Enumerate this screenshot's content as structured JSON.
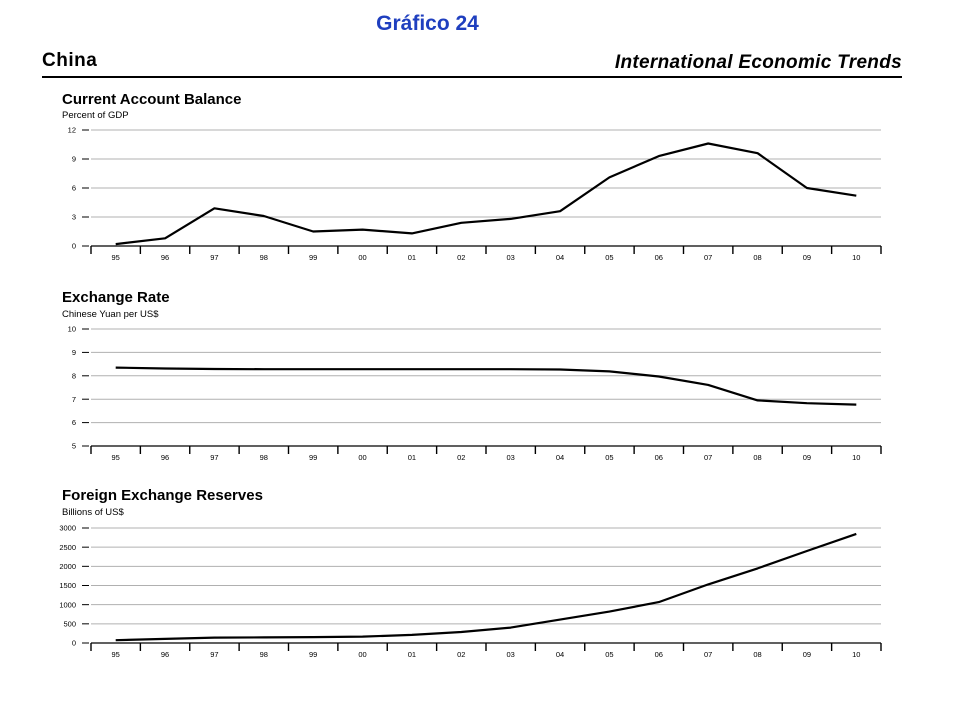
{
  "header": {
    "title": "Gráfico 24",
    "country": "China",
    "publication": "International Economic Trends"
  },
  "chart_data": [
    {
      "type": "line",
      "title": "Current Account Balance",
      "subtitle": "Percent of GDP",
      "xlabel": "",
      "ylabel": "",
      "categories": [
        "95",
        "96",
        "97",
        "98",
        "99",
        "00",
        "01",
        "02",
        "03",
        "04",
        "05",
        "06",
        "07",
        "08",
        "09",
        "10"
      ],
      "series": [
        {
          "values": [
            0.2,
            0.8,
            3.9,
            3.1,
            1.5,
            1.7,
            1.3,
            2.4,
            2.8,
            3.6,
            7.1,
            9.3,
            10.6,
            9.6,
            6.0,
            5.2
          ]
        }
      ],
      "ylim": [
        0,
        12
      ],
      "yticks": [
        0,
        3,
        6,
        9,
        12
      ],
      "grid": true
    },
    {
      "type": "line",
      "title": "Exchange Rate",
      "subtitle": "Chinese Yuan per US$",
      "xlabel": "",
      "ylabel": "",
      "categories": [
        "95",
        "96",
        "97",
        "98",
        "99",
        "00",
        "01",
        "02",
        "03",
        "04",
        "05",
        "06",
        "07",
        "08",
        "09",
        "10"
      ],
      "series": [
        {
          "values": [
            8.35,
            8.31,
            8.29,
            8.28,
            8.28,
            8.28,
            8.28,
            8.28,
            8.28,
            8.27,
            8.19,
            7.97,
            7.61,
            6.95,
            6.83,
            6.77
          ]
        }
      ],
      "ylim": [
        5,
        10
      ],
      "yticks": [
        5,
        6,
        7,
        8,
        9,
        10
      ],
      "grid": true
    },
    {
      "type": "line",
      "title": "Foreign Exchange Reserves",
      "subtitle": "Billions of US$",
      "xlabel": "",
      "ylabel": "",
      "categories": [
        "95",
        "96",
        "97",
        "98",
        "99",
        "00",
        "01",
        "02",
        "03",
        "04",
        "05",
        "06",
        "07",
        "08",
        "09",
        "10"
      ],
      "series": [
        {
          "values": [
            74,
            107,
            140,
            145,
            155,
            166,
            212,
            286,
            403,
            610,
            819,
            1066,
            1528,
            1946,
            2399,
            2847
          ]
        }
      ],
      "ylim": [
        0,
        3000
      ],
      "yticks": [
        0,
        500,
        1000,
        1500,
        2000,
        2500,
        3000
      ],
      "grid": true
    }
  ]
}
